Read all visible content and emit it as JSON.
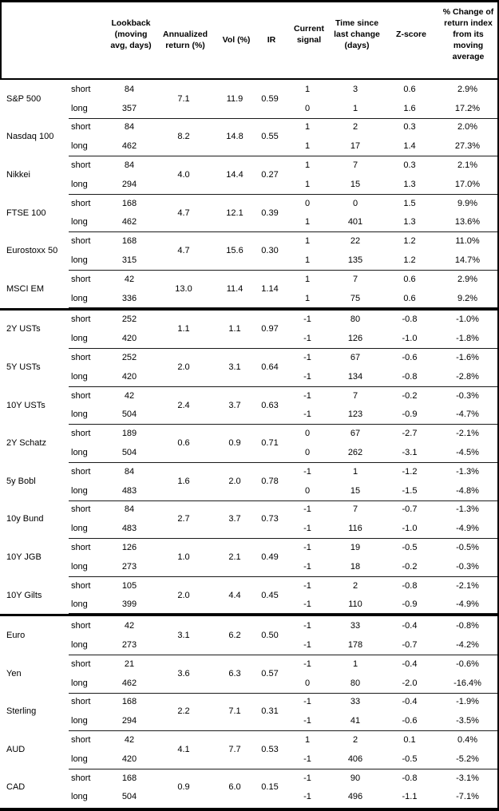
{
  "header": {
    "lookback": "Lookback (moving avg, days)",
    "annualized_return": "Annualized return (%)",
    "vol": "Vol (%)",
    "ir": "IR",
    "current_signal": "Current signal",
    "time_since": "Time since last change (days)",
    "z_score": "Z-score",
    "pct_change": "% Change of return index from its moving average"
  },
  "row_labels": {
    "short": "short",
    "long": "long"
  },
  "sections": [
    {
      "id": "equities",
      "assets": [
        {
          "name": "S&P 500",
          "annualized_return": "7.1",
          "vol": "11.9",
          "ir": "0.59",
          "short": {
            "lookback": "84",
            "signal": "1",
            "time": "3",
            "z": "0.6",
            "pct": "2.9%"
          },
          "long": {
            "lookback": "357",
            "signal": "0",
            "time": "1",
            "z": "1.6",
            "pct": "17.2%"
          }
        },
        {
          "name": "Nasdaq 100",
          "annualized_return": "8.2",
          "vol": "14.8",
          "ir": "0.55",
          "short": {
            "lookback": "84",
            "signal": "1",
            "time": "2",
            "z": "0.3",
            "pct": "2.0%"
          },
          "long": {
            "lookback": "462",
            "signal": "1",
            "time": "17",
            "z": "1.4",
            "pct": "27.3%"
          }
        },
        {
          "name": "Nikkei",
          "annualized_return": "4.0",
          "vol": "14.4",
          "ir": "0.27",
          "short": {
            "lookback": "84",
            "signal": "1",
            "time": "7",
            "z": "0.3",
            "pct": "2.1%"
          },
          "long": {
            "lookback": "294",
            "signal": "1",
            "time": "15",
            "z": "1.3",
            "pct": "17.0%"
          }
        },
        {
          "name": "FTSE 100",
          "annualized_return": "4.7",
          "vol": "12.1",
          "ir": "0.39",
          "short": {
            "lookback": "168",
            "signal": "0",
            "time": "0",
            "z": "1.5",
            "pct": "9.9%"
          },
          "long": {
            "lookback": "462",
            "signal": "1",
            "time": "401",
            "z": "1.3",
            "pct": "13.6%"
          }
        },
        {
          "name": "Eurostoxx 50",
          "annualized_return": "4.7",
          "vol": "15.6",
          "ir": "0.30",
          "short": {
            "lookback": "168",
            "signal": "1",
            "time": "22",
            "z": "1.2",
            "pct": "11.0%"
          },
          "long": {
            "lookback": "315",
            "signal": "1",
            "time": "135",
            "z": "1.2",
            "pct": "14.7%"
          }
        },
        {
          "name": "MSCI EM",
          "annualized_return": "13.0",
          "vol": "11.4",
          "ir": "1.14",
          "short": {
            "lookback": "42",
            "signal": "1",
            "time": "7",
            "z": "0.6",
            "pct": "2.9%"
          },
          "long": {
            "lookback": "336",
            "signal": "1",
            "time": "75",
            "z": "0.6",
            "pct": "9.2%"
          }
        }
      ]
    },
    {
      "id": "bonds",
      "assets": [
        {
          "name": "2Y USTs",
          "annualized_return": "1.1",
          "vol": "1.1",
          "ir": "0.97",
          "short": {
            "lookback": "252",
            "signal": "-1",
            "time": "80",
            "z": "-0.8",
            "pct": "-1.0%"
          },
          "long": {
            "lookback": "420",
            "signal": "-1",
            "time": "126",
            "z": "-1.0",
            "pct": "-1.8%"
          }
        },
        {
          "name": "5Y USTs",
          "annualized_return": "2.0",
          "vol": "3.1",
          "ir": "0.64",
          "short": {
            "lookback": "252",
            "signal": "-1",
            "time": "67",
            "z": "-0.6",
            "pct": "-1.6%"
          },
          "long": {
            "lookback": "420",
            "signal": "-1",
            "time": "134",
            "z": "-0.8",
            "pct": "-2.8%"
          }
        },
        {
          "name": "10Y USTs",
          "annualized_return": "2.4",
          "vol": "3.7",
          "ir": "0.63",
          "short": {
            "lookback": "42",
            "signal": "-1",
            "time": "7",
            "z": "-0.2",
            "pct": "-0.3%"
          },
          "long": {
            "lookback": "504",
            "signal": "-1",
            "time": "123",
            "z": "-0.9",
            "pct": "-4.7%"
          }
        },
        {
          "name": "2Y Schatz",
          "annualized_return": "0.6",
          "vol": "0.9",
          "ir": "0.71",
          "short": {
            "lookback": "189",
            "signal": "0",
            "time": "67",
            "z": "-2.7",
            "pct": "-2.1%"
          },
          "long": {
            "lookback": "504",
            "signal": "0",
            "time": "262",
            "z": "-3.1",
            "pct": "-4.5%"
          }
        },
        {
          "name": "5y Bobl",
          "annualized_return": "1.6",
          "vol": "2.0",
          "ir": "0.78",
          "short": {
            "lookback": "84",
            "signal": "-1",
            "time": "1",
            "z": "-1.2",
            "pct": "-1.3%"
          },
          "long": {
            "lookback": "483",
            "signal": "0",
            "time": "15",
            "z": "-1.5",
            "pct": "-4.8%"
          }
        },
        {
          "name": "10y Bund",
          "annualized_return": "2.7",
          "vol": "3.7",
          "ir": "0.73",
          "short": {
            "lookback": "84",
            "signal": "-1",
            "time": "7",
            "z": "-0.7",
            "pct": "-1.3%"
          },
          "long": {
            "lookback": "483",
            "signal": "-1",
            "time": "116",
            "z": "-1.0",
            "pct": "-4.9%"
          }
        },
        {
          "name": "10Y JGB",
          "annualized_return": "1.0",
          "vol": "2.1",
          "ir": "0.49",
          "short": {
            "lookback": "126",
            "signal": "-1",
            "time": "19",
            "z": "-0.5",
            "pct": "-0.5%"
          },
          "long": {
            "lookback": "273",
            "signal": "-1",
            "time": "18",
            "z": "-0.2",
            "pct": "-0.3%"
          }
        },
        {
          "name": "10Y Gilts",
          "annualized_return": "2.0",
          "vol": "4.4",
          "ir": "0.45",
          "short": {
            "lookback": "105",
            "signal": "-1",
            "time": "2",
            "z": "-0.8",
            "pct": "-2.1%"
          },
          "long": {
            "lookback": "399",
            "signal": "-1",
            "time": "110",
            "z": "-0.9",
            "pct": "-4.9%"
          }
        }
      ]
    },
    {
      "id": "fx",
      "assets": [
        {
          "name": "Euro",
          "annualized_return": "3.1",
          "vol": "6.2",
          "ir": "0.50",
          "short": {
            "lookback": "42",
            "signal": "-1",
            "time": "33",
            "z": "-0.4",
            "pct": "-0.8%"
          },
          "long": {
            "lookback": "273",
            "signal": "-1",
            "time": "178",
            "z": "-0.7",
            "pct": "-4.2%"
          }
        },
        {
          "name": "Yen",
          "annualized_return": "3.6",
          "vol": "6.3",
          "ir": "0.57",
          "short": {
            "lookback": "21",
            "signal": "-1",
            "time": "1",
            "z": "-0.4",
            "pct": "-0.6%"
          },
          "long": {
            "lookback": "462",
            "signal": "0",
            "time": "80",
            "z": "-2.0",
            "pct": "-16.4%"
          }
        },
        {
          "name": "Sterling",
          "annualized_return": "2.2",
          "vol": "7.1",
          "ir": "0.31",
          "short": {
            "lookback": "168",
            "signal": "-1",
            "time": "33",
            "z": "-0.4",
            "pct": "-1.9%"
          },
          "long": {
            "lookback": "294",
            "signal": "-1",
            "time": "41",
            "z": "-0.6",
            "pct": "-3.5%"
          }
        },
        {
          "name": "AUD",
          "annualized_return": "4.1",
          "vol": "7.7",
          "ir": "0.53",
          "short": {
            "lookback": "42",
            "signal": "1",
            "time": "2",
            "z": "0.1",
            "pct": "0.4%"
          },
          "long": {
            "lookback": "420",
            "signal": "-1",
            "time": "406",
            "z": "-0.5",
            "pct": "-5.2%"
          }
        },
        {
          "name": "CAD",
          "annualized_return": "0.9",
          "vol": "6.0",
          "ir": "0.15",
          "short": {
            "lookback": "168",
            "signal": "-1",
            "time": "90",
            "z": "-0.8",
            "pct": "-3.1%"
          },
          "long": {
            "lookback": "504",
            "signal": "-1",
            "time": "496",
            "z": "-1.1",
            "pct": "-7.1%"
          }
        }
      ]
    }
  ]
}
